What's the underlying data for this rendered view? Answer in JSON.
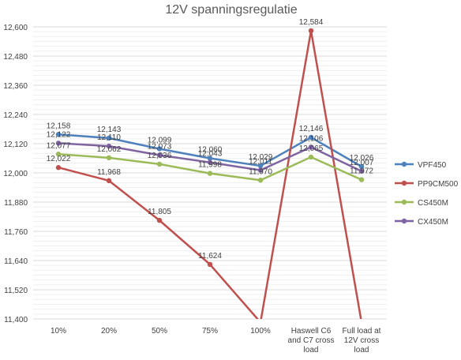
{
  "chart_data": {
    "type": "line",
    "title": "12V spanningsregulatie",
    "xlabel": "",
    "ylabel": "",
    "categories": [
      [
        "10%"
      ],
      [
        "20%"
      ],
      [
        "50%"
      ],
      [
        "75%"
      ],
      [
        "100%"
      ],
      [
        "Haswell C6",
        "and C7 cross",
        "load"
      ],
      [
        "Full load at",
        "12V cross",
        "load"
      ]
    ],
    "ylim": [
      11.4,
      12.6
    ],
    "ytick_step": 0.12,
    "ytick_labels": [
      "11,400",
      "11,520",
      "11,640",
      "11,760",
      "11,880",
      "12,000",
      "12,120",
      "12,240",
      "12,360",
      "12,480",
      "12,600"
    ],
    "grid": true,
    "legend_position": "right",
    "series": [
      {
        "name": "VPF450",
        "color": "#4f81bd",
        "values": [
          12.158,
          12.143,
          12.099,
          12.06,
          12.029,
          12.146,
          12.026
        ],
        "labels": [
          "12,158",
          "12,143",
          "12,099",
          "12,060",
          "12,029",
          "12,146",
          "12,026"
        ]
      },
      {
        "name": "PP9CM500",
        "color": "#c0504d",
        "values": [
          12.022,
          11.968,
          11.805,
          11.624,
          11.386,
          12.584,
          11.386
        ],
        "labels": [
          "12,022",
          "11,968",
          "11,805",
          "11,624",
          "",
          "12,584",
          ""
        ]
      },
      {
        "name": "CS450M",
        "color": "#9bbb59",
        "values": [
          12.077,
          12.062,
          12.036,
          11.998,
          11.97,
          12.065,
          11.972
        ],
        "labels": [
          "12,077",
          "12,062",
          "12,036",
          "11,998",
          "11,970",
          "12,065",
          "11,972"
        ]
      },
      {
        "name": "CX450M",
        "color": "#8064a2",
        "values": [
          12.122,
          12.11,
          12.073,
          12.043,
          12.011,
          12.106,
          12.007
        ],
        "labels": [
          "12,122",
          "12,110",
          "12,073",
          "12,043",
          "12,011",
          "12,106",
          "12,007"
        ]
      }
    ]
  }
}
